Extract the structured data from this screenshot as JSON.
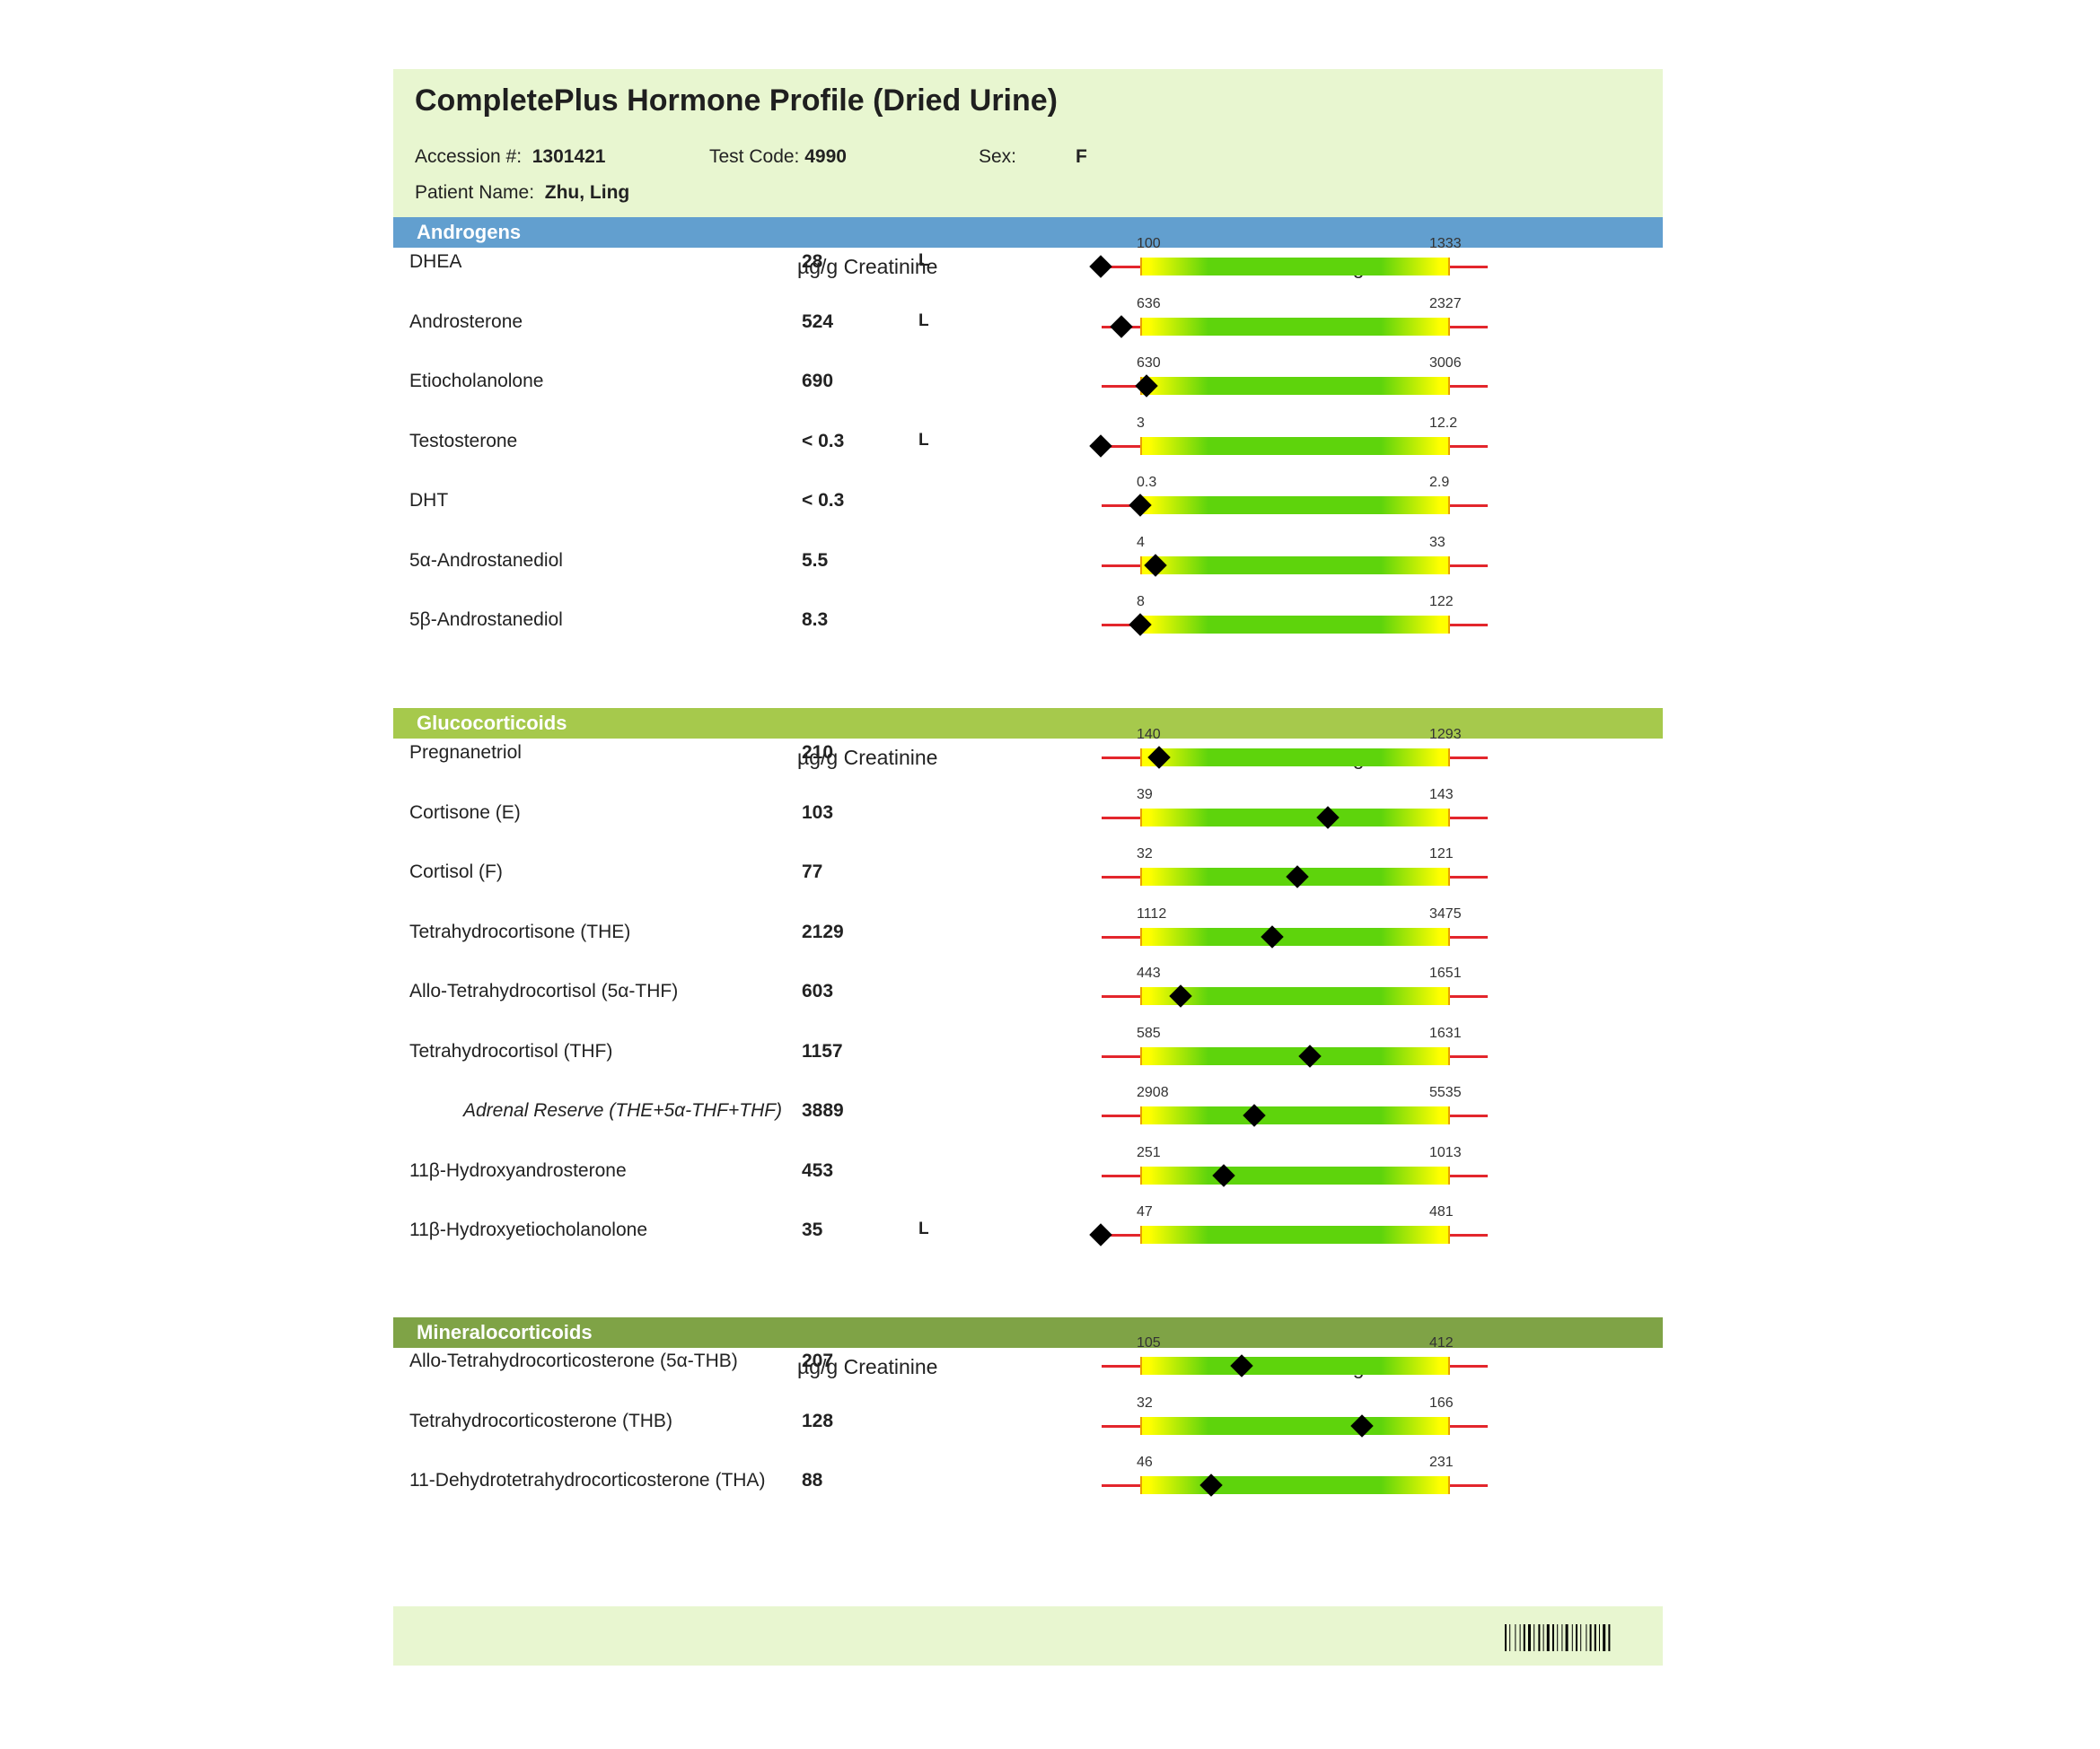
{
  "header": {
    "title": "CompletePlus Hormone Profile (Dried Urine)",
    "accession_label": "Accession #:",
    "accession_value": "1301421",
    "test_code_label": "Test Code:",
    "test_code_value": "4990",
    "sex_label": "Sex:",
    "sex_value": "F",
    "patient_label": "Patient Name:",
    "patient_value": "Zhu, Ling"
  },
  "colors": {
    "androgens": "#629fcf",
    "glucocorticoids": "#a6c94c",
    "mineralocorticoids": "#7fa346",
    "header_bg": "#e8f6d0"
  },
  "sections": [
    {
      "title": "Androgens",
      "unit_label": "µg/g Creatinine",
      "range_label": "Reference Range",
      "rows": [
        {
          "name": "DHEA",
          "value": "28",
          "flag": "L",
          "low": "100",
          "high": "1333",
          "pos": -0.43
        },
        {
          "name": "Androsterone",
          "value": "524",
          "flag": "L",
          "low": "636",
          "high": "2327",
          "pos": -0.06
        },
        {
          "name": "Etiocholanolone",
          "value": "690",
          "flag": "",
          "low": "630",
          "high": "3006",
          "pos": 0.02
        },
        {
          "name": "Testosterone",
          "value": "< 0.3",
          "flag": "L",
          "low": "3",
          "high": "12.2",
          "pos": -0.43
        },
        {
          "name": "DHT",
          "value": "< 0.3",
          "flag": "",
          "low": "0.3",
          "high": "2.9",
          "pos": 0.0
        },
        {
          "name": "5α-Androstanediol",
          "value": "5.5",
          "flag": "",
          "low": "4",
          "high": "33",
          "pos": 0.05
        },
        {
          "name": "5β-Androstanediol",
          "value": "8.3",
          "flag": "",
          "low": "8",
          "high": "122",
          "pos": 0.0
        }
      ]
    },
    {
      "title": "Glucocorticoids",
      "unit_label": "µg/g Creatinine",
      "range_label": "Reference Range",
      "rows": [
        {
          "name": "Pregnanetriol",
          "value": "210",
          "flag": "",
          "low": "140",
          "high": "1293",
          "pos": 0.06,
          "italic": false
        },
        {
          "name": "Cortisone (E)",
          "value": "103",
          "flag": "",
          "low": "39",
          "high": "143",
          "pos": 0.61
        },
        {
          "name": "Cortisol (F)",
          "value": "77",
          "flag": "",
          "low": "32",
          "high": "121",
          "pos": 0.51
        },
        {
          "name": "Tetrahydrocortisone (THE)",
          "value": "2129",
          "flag": "",
          "low": "1112",
          "high": "3475",
          "pos": 0.43
        },
        {
          "name": "Allo-Tetrahydrocortisol (5α-THF)",
          "value": "603",
          "flag": "",
          "low": "443",
          "high": "1651",
          "pos": 0.13
        },
        {
          "name": "Tetrahydrocortisol (THF)",
          "value": "1157",
          "flag": "",
          "low": "585",
          "high": "1631",
          "pos": 0.55
        },
        {
          "name": "Adrenal Reserve (THE+5α-THF+THF)",
          "value": "3889",
          "flag": "",
          "low": "2908",
          "high": "5535",
          "pos": 0.37,
          "italic": true
        },
        {
          "name": "11β-Hydroxyandrosterone",
          "value": "453",
          "flag": "",
          "low": "251",
          "high": "1013",
          "pos": 0.27
        },
        {
          "name": "11β-Hydroxyetiocholanolone",
          "value": "35",
          "flag": "L",
          "low": "47",
          "high": "481",
          "pos": -0.43
        }
      ]
    },
    {
      "title": "Mineralocorticoids",
      "unit_label": "µg/g Creatinine",
      "range_label": "Reference Range",
      "rows": [
        {
          "name": "Allo-Tetrahydrocorticosterone (5α-THB)",
          "value": "207",
          "flag": "",
          "low": "105",
          "high": "412",
          "pos": 0.33
        },
        {
          "name": "Tetrahydrocorticosterone (THB)",
          "value": "128",
          "flag": "",
          "low": "32",
          "high": "166",
          "pos": 0.72
        },
        {
          "name": "11-Dehydrotetrahydrocorticosterone (THA)",
          "value": "88",
          "flag": "",
          "low": "46",
          "high": "231",
          "pos": 0.23
        }
      ]
    }
  ]
}
